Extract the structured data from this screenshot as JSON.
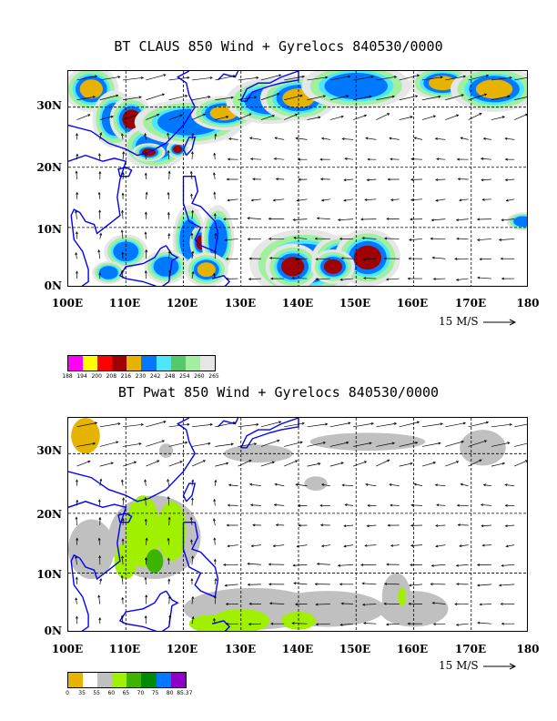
{
  "panels": [
    {
      "title": "BT CLAUS 850 Wind + Gyrelocs 840530/0000",
      "lat_labels": [
        "30N",
        "20N",
        "10N",
        "0N"
      ],
      "lon_labels": [
        "100E",
        "110E",
        "120E",
        "130E",
        "140E",
        "150E",
        "160E",
        "170E",
        "180"
      ],
      "ref_vector": "15 M/S",
      "legend": {
        "colors": [
          "#ff00ff",
          "#ffff00",
          "#ff0000",
          "#a00000",
          "#e6b400",
          "#0078ff",
          "#4ce6ff",
          "#55c86e",
          "#a0f0a0",
          "#e6e6e6"
        ],
        "labels": [
          "188",
          "194",
          "200",
          "208",
          "216",
          "230",
          "242",
          "248",
          "254",
          "260",
          "265"
        ]
      },
      "field_colors": [
        "#a00000",
        "#e6b400",
        "#0078ff",
        "#4ce6ff",
        "#55c86e",
        "#a0f0a0",
        "#e6e6e6"
      ]
    },
    {
      "title": "BT Pwat 850 Wind + Gyrelocs 840530/0000",
      "lat_labels": [
        "30N",
        "20N",
        "10N",
        "0N"
      ],
      "lon_labels": [
        "100E",
        "110E",
        "120E",
        "130E",
        "140E",
        "150E",
        "160E",
        "170E",
        "180"
      ],
      "ref_vector": "15 M/S",
      "legend": {
        "colors": [
          "#e6b400",
          "#ffffff",
          "#c0c0c0",
          "#a0f000",
          "#3cb400",
          "#008c00",
          "#0078ff",
          "#8c00c8"
        ],
        "labels": [
          "0",
          "35",
          "55",
          "60",
          "65",
          "70",
          "75",
          "80",
          "85.37"
        ]
      },
      "field_colors": [
        "#e6b400",
        "#c0c0c0",
        "#a0f000",
        "#3cb400"
      ]
    }
  ],
  "map": {
    "lon_range": [
      100,
      180
    ],
    "lat_range": [
      0,
      36
    ],
    "coastline_color": "#0000ff"
  }
}
